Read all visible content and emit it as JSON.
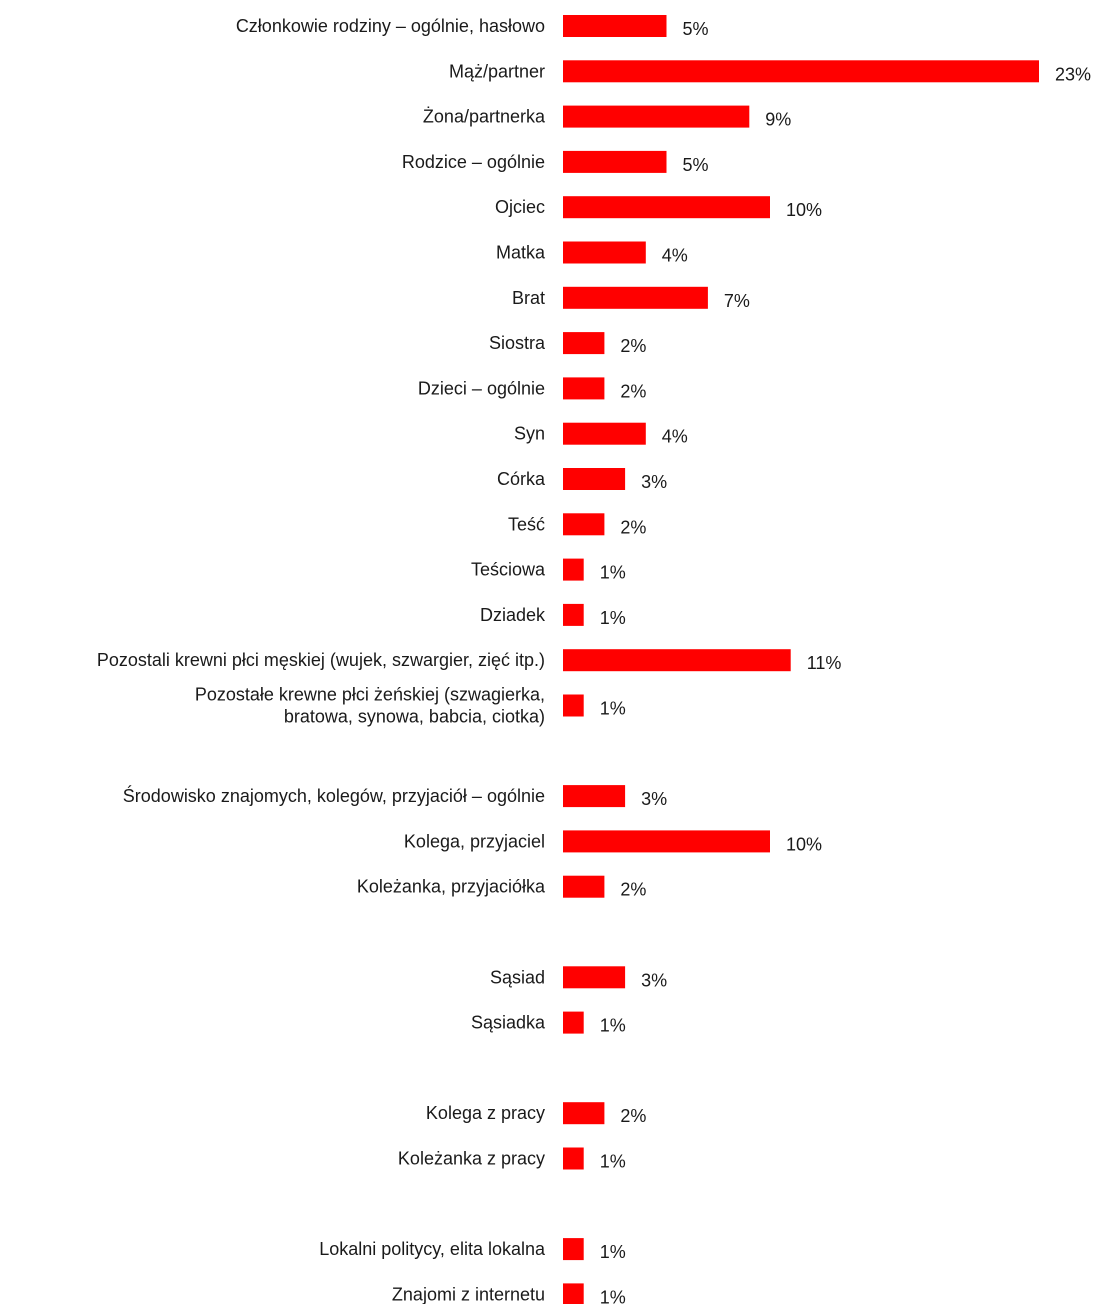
{
  "chart_data": {
    "type": "bar",
    "orientation": "horizontal",
    "bar_color": "#ff0000",
    "text_color": "#1a1a1a",
    "xlim": [
      0,
      23
    ],
    "categories": [
      "Członkowie rodziny – ogólnie, hasłowo",
      "Mąż/partner",
      "Żona/partnerka",
      "Rodzice – ogólnie",
      "Ojciec",
      "Matka",
      "Brat",
      "Siostra",
      "Dzieci – ogólnie",
      "Syn",
      "Córka",
      "Teść",
      "Teściowa",
      "Dziadek",
      "Pozostali krewni płci męskiej (wujek, szwargier, zięć itp.)",
      "Pozostałe krewne płci żeńskiej (szwagierka, bratowa, synowa, babcia, ciotka)",
      "Środowisko znajomych, kolegów, przyjaciół – ogólnie",
      "Kolega, przyjaciel",
      "Koleżanka, przyjaciółka",
      "Sąsiad",
      "Sąsiadka",
      "Kolega z pracy",
      "Koleżanka z pracy",
      "Lokalni politycy, elita lokalna",
      "Znajomi z internetu"
    ],
    "label_lines": [
      [
        "Członkowie rodziny – ogólnie, hasłowo"
      ],
      [
        "Mąż/partner"
      ],
      [
        "Żona/partnerka"
      ],
      [
        "Rodzice – ogólnie"
      ],
      [
        "Ojciec"
      ],
      [
        "Matka"
      ],
      [
        "Brat"
      ],
      [
        "Siostra"
      ],
      [
        "Dzieci – ogólnie"
      ],
      [
        "Syn"
      ],
      [
        "Córka"
      ],
      [
        "Teść"
      ],
      [
        "Teściowa"
      ],
      [
        "Dziadek"
      ],
      [
        "Pozostali krewni płci męskiej (wujek, szwargier, zięć itp.)"
      ],
      [
        "Pozostałe krewne płci żeńskiej (szwagierka,",
        "bratowa, synowa, babcia, ciotka)"
      ],
      [
        "Środowisko znajomych, kolegów, przyjaciół – ogólnie"
      ],
      [
        "Kolega, przyjaciel"
      ],
      [
        "Koleżanka, przyjaciółka"
      ],
      [
        "Sąsiad"
      ],
      [
        "Sąsiadka"
      ],
      [
        "Kolega z pracy"
      ],
      [
        "Koleżanka z pracy"
      ],
      [
        "Lokalni politycy, elita lokalna"
      ],
      [
        "Znajomi z internetu"
      ]
    ],
    "values": [
      5,
      23,
      9,
      5,
      10,
      4,
      7,
      2,
      2,
      4,
      3,
      2,
      1,
      1,
      11,
      1,
      3,
      10,
      2,
      3,
      1,
      2,
      1,
      1,
      1
    ],
    "value_labels": [
      "5%",
      "23%",
      "9%",
      "5%",
      "10%",
      "4%",
      "7%",
      "2%",
      "2%",
      "4%",
      "3%",
      "2%",
      "1%",
      "1%",
      "11%",
      "1%",
      "3%",
      "10%",
      "2%",
      "3%",
      "1%",
      "2%",
      "1%",
      "1%",
      "1%"
    ],
    "gap_before": [
      16,
      19,
      21,
      23
    ]
  }
}
